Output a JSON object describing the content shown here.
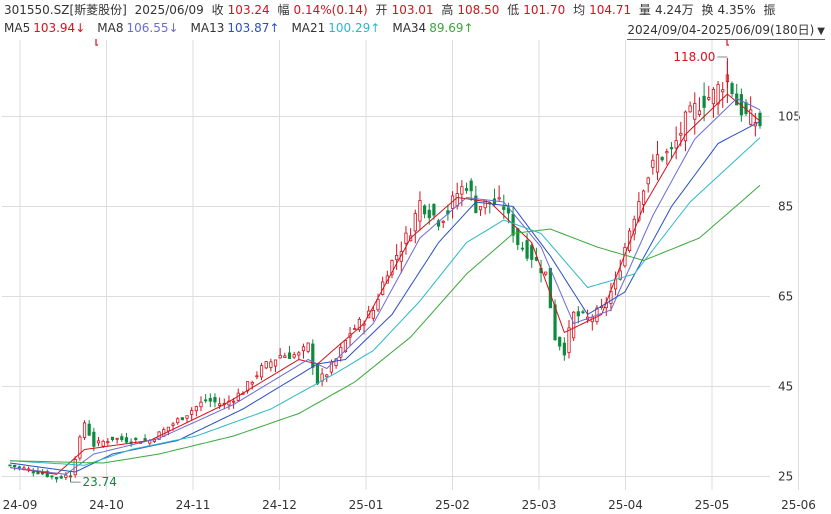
{
  "header": {
    "symbol": "301550.SZ[斯菱股份]",
    "date": "2025/06/09",
    "close_label": "收",
    "close": "103.24",
    "change_label": "幅",
    "change": "0.14%(0.14)",
    "open_label": "开",
    "open": "103.01",
    "high_label": "高",
    "high": "108.50",
    "low_label": "低",
    "low": "101.70",
    "avg_label": "均",
    "avg": "104.71",
    "volume_label": "量",
    "volume": "4.24万",
    "turnover_label": "换",
    "turnover": "4.35%",
    "amplitude_label": "振"
  },
  "ma_legend": [
    {
      "name": "MA5",
      "value": "103.94",
      "arrow": "↓",
      "color": "#d4121d"
    },
    {
      "name": "MA8",
      "value": "106.55",
      "arrow": "↓",
      "color": "#6b6bd6"
    },
    {
      "name": "MA13",
      "value": "103.87",
      "arrow": "↑",
      "color": "#2b4fc4"
    },
    {
      "name": "MA21",
      "value": "100.29",
      "arrow": "↑",
      "color": "#2ab8c8"
    },
    {
      "name": "MA34",
      "value": "89.69",
      "arrow": "↑",
      "color": "#3aa83a"
    }
  ],
  "range_label": "2024/09/04-2025/06/09(180日)",
  "colors": {
    "up": "#d4121d",
    "down": "#0c8a3e",
    "grid": "#dddddd"
  },
  "chart_data": {
    "type": "candlestick",
    "x_ticks": [
      "24-09",
      "24-10",
      "24-11",
      "24-12",
      "25-01",
      "25-02",
      "25-03",
      "25-04",
      "25-05",
      "25-06"
    ],
    "y_ticks": [
      25,
      45,
      65,
      85,
      105
    ],
    "ylim": [
      22,
      122
    ],
    "annotations": [
      {
        "label": "118.00",
        "type": "max"
      },
      {
        "label": "23.74",
        "type": "min"
      }
    ],
    "close_points": [
      [
        0,
        27.5
      ],
      [
        6,
        26.0
      ],
      [
        10,
        24.6
      ],
      [
        13,
        25.5
      ],
      [
        16,
        37.0
      ],
      [
        18,
        32.0
      ],
      [
        22,
        33.5
      ],
      [
        26,
        33.0
      ],
      [
        30,
        33.0
      ],
      [
        34,
        36.0
      ],
      [
        38,
        39.0
      ],
      [
        42,
        42.0
      ],
      [
        46,
        41.0
      ],
      [
        50,
        44.0
      ],
      [
        54,
        49.0
      ],
      [
        58,
        52.0
      ],
      [
        62,
        52.0
      ],
      [
        64,
        54.0
      ],
      [
        66,
        46.0
      ],
      [
        68,
        48.0
      ],
      [
        70,
        51.0
      ],
      [
        73,
        57.0
      ],
      [
        76,
        60.0
      ],
      [
        78,
        62.0
      ],
      [
        81,
        71.0
      ],
      [
        84,
        76.0
      ],
      [
        86,
        80.0
      ],
      [
        88,
        86.0
      ],
      [
        90,
        84.0
      ],
      [
        92,
        82.0
      ],
      [
        94,
        84.0
      ],
      [
        96,
        88.0
      ],
      [
        98,
        90.0
      ],
      [
        100,
        85.0
      ],
      [
        103,
        86.0
      ],
      [
        106,
        85.0
      ],
      [
        109,
        77.0
      ],
      [
        112,
        74.0
      ],
      [
        115,
        70.0
      ],
      [
        117,
        56.0
      ],
      [
        119,
        53.0
      ],
      [
        121,
        61.0
      ],
      [
        124,
        60.0
      ],
      [
        127,
        62.0
      ],
      [
        130,
        68.0
      ],
      [
        133,
        80.0
      ],
      [
        136,
        90.0
      ],
      [
        139,
        96.0
      ],
      [
        142,
        97.0
      ],
      [
        145,
        104.0
      ],
      [
        148,
        108.0
      ],
      [
        151,
        110.0
      ],
      [
        154,
        114.0
      ],
      [
        156,
        108.0
      ],
      [
        158,
        105.0
      ],
      [
        160,
        104.0
      ],
      [
        161,
        103.24
      ]
    ],
    "ma_lines": [
      {
        "name": "MA5",
        "points": [
          [
            0,
            27.0
          ],
          [
            10,
            25.5
          ],
          [
            16,
            31.0
          ],
          [
            30,
            33.0
          ],
          [
            46,
            41.0
          ],
          [
            62,
            51.0
          ],
          [
            66,
            50.0
          ],
          [
            76,
            59.0
          ],
          [
            86,
            78.0
          ],
          [
            96,
            87.0
          ],
          [
            103,
            86.0
          ],
          [
            112,
            77.0
          ],
          [
            119,
            57.0
          ],
          [
            127,
            61.0
          ],
          [
            136,
            85.0
          ],
          [
            145,
            101.0
          ],
          [
            154,
            110.0
          ],
          [
            161,
            104.0
          ]
        ]
      },
      {
        "name": "MA8",
        "points": [
          [
            0,
            27.0
          ],
          [
            12,
            25.5
          ],
          [
            18,
            30.0
          ],
          [
            32,
            33.5
          ],
          [
            48,
            41.0
          ],
          [
            64,
            51.0
          ],
          [
            68,
            49.0
          ],
          [
            78,
            59.0
          ],
          [
            88,
            78.0
          ],
          [
            98,
            87.0
          ],
          [
            106,
            86.0
          ],
          [
            114,
            76.0
          ],
          [
            121,
            59.0
          ],
          [
            129,
            62.0
          ],
          [
            138,
            83.0
          ],
          [
            147,
            100.0
          ],
          [
            156,
            109.0
          ],
          [
            161,
            106.5
          ]
        ]
      },
      {
        "name": "MA13",
        "points": [
          [
            0,
            28.0
          ],
          [
            14,
            26.0
          ],
          [
            22,
            30.0
          ],
          [
            36,
            33.0
          ],
          [
            50,
            40.0
          ],
          [
            66,
            50.0
          ],
          [
            72,
            51.0
          ],
          [
            82,
            61.0
          ],
          [
            92,
            77.0
          ],
          [
            100,
            86.0
          ],
          [
            108,
            85.0
          ],
          [
            116,
            74.0
          ],
          [
            124,
            61.0
          ],
          [
            132,
            66.0
          ],
          [
            142,
            85.0
          ],
          [
            152,
            99.0
          ],
          [
            161,
            103.9
          ]
        ]
      },
      {
        "name": "MA21",
        "points": [
          [
            0,
            28.5
          ],
          [
            16,
            27.5
          ],
          [
            26,
            31.0
          ],
          [
            40,
            34.0
          ],
          [
            56,
            40.0
          ],
          [
            70,
            48.0
          ],
          [
            78,
            53.0
          ],
          [
            88,
            64.0
          ],
          [
            98,
            77.0
          ],
          [
            106,
            82.0
          ],
          [
            114,
            79.0
          ],
          [
            124,
            67.0
          ],
          [
            134,
            70.0
          ],
          [
            146,
            86.0
          ],
          [
            161,
            100.3
          ]
        ]
      },
      {
        "name": "MA34",
        "points": [
          [
            0,
            28.5
          ],
          [
            20,
            28.0
          ],
          [
            32,
            30.0
          ],
          [
            48,
            34.0
          ],
          [
            62,
            39.0
          ],
          [
            74,
            46.0
          ],
          [
            86,
            56.0
          ],
          [
            98,
            70.0
          ],
          [
            108,
            79.0
          ],
          [
            116,
            80.0
          ],
          [
            126,
            76.0
          ],
          [
            136,
            73.0
          ],
          [
            148,
            78.0
          ],
          [
            161,
            89.7
          ]
        ]
      }
    ]
  }
}
